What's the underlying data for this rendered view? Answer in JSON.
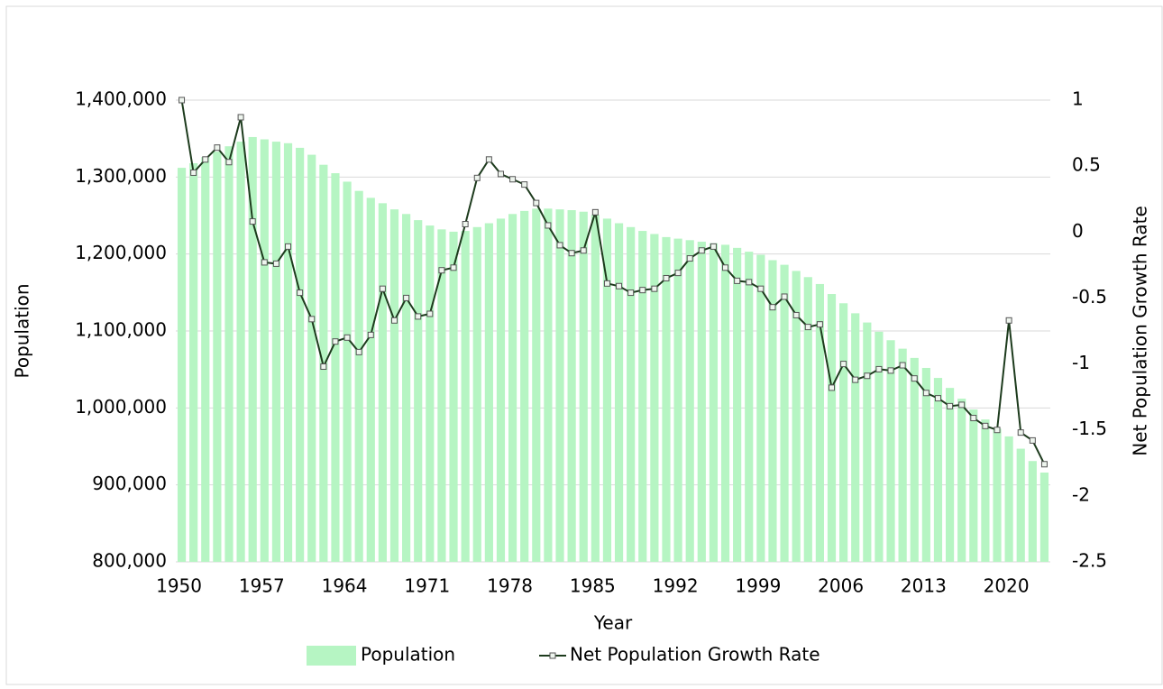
{
  "chart_data": {
    "type": "bar",
    "x_label": "Year",
    "y_label": "Population",
    "y2_label": "Net Population Growth Rate",
    "categories": [
      "1950",
      null,
      null,
      null,
      null,
      null,
      null,
      "1957",
      null,
      null,
      null,
      null,
      null,
      null,
      "1964",
      null,
      null,
      null,
      null,
      null,
      null,
      "1971",
      null,
      null,
      null,
      null,
      null,
      null,
      "1978",
      null,
      null,
      null,
      null,
      null,
      null,
      "1985",
      null,
      null,
      null,
      null,
      null,
      null,
      "1992",
      null,
      null,
      null,
      null,
      null,
      null,
      "1999",
      null,
      null,
      null,
      null,
      null,
      null,
      "2006",
      null,
      null,
      null,
      null,
      null,
      null,
      "2013",
      null,
      null,
      null,
      null,
      null,
      null,
      "2020",
      null,
      null,
      null
    ],
    "series": [
      {
        "name": "Population",
        "type": "bar",
        "color": "#b6f5c3",
        "values": [
          1312000,
          1318000,
          1326000,
          1333000,
          1340000,
          1346000,
          1352000,
          1349000,
          1346000,
          1344000,
          1338000,
          1329000,
          1316000,
          1305000,
          1294000,
          1282000,
          1273000,
          1266000,
          1258000,
          1252000,
          1244000,
          1237000,
          1232000,
          1229000,
          1230000,
          1235000,
          1240000,
          1246000,
          1252000,
          1256000,
          1259000,
          1259000,
          1258000,
          1257000,
          1255000,
          1251000,
          1246000,
          1240000,
          1235000,
          1230000,
          1226000,
          1222000,
          1220000,
          1218000,
          1216000,
          1214000,
          1212000,
          1208000,
          1203000,
          1199000,
          1192000,
          1186000,
          1178000,
          1170000,
          1161000,
          1148000,
          1136000,
          1123000,
          1111000,
          1099000,
          1088000,
          1077000,
          1065000,
          1052000,
          1039000,
          1026000,
          1012000,
          998000,
          985000,
          973000,
          963000,
          947000,
          931000,
          916000
        ]
      },
      {
        "name": "Net Population Growth Rate",
        "type": "line",
        "axis": "y2",
        "color": "#1d3b1d",
        "values": [
          1.0,
          0.45,
          0.55,
          0.64,
          0.53,
          0.87,
          0.08,
          -0.23,
          -0.24,
          -0.11,
          -0.46,
          -0.66,
          -1.02,
          -0.83,
          -0.8,
          -0.91,
          -0.78,
          -0.43,
          -0.67,
          -0.5,
          -0.64,
          -0.62,
          -0.29,
          -0.27,
          0.06,
          0.41,
          0.55,
          0.44,
          0.4,
          0.36,
          0.22,
          0.05,
          -0.1,
          -0.16,
          -0.14,
          0.15,
          -0.39,
          -0.41,
          -0.46,
          -0.44,
          -0.43,
          -0.35,
          -0.31,
          -0.2,
          -0.14,
          -0.11,
          -0.27,
          -0.37,
          -0.38,
          -0.43,
          -0.57,
          -0.49,
          -0.63,
          -0.72,
          -0.7,
          -1.18,
          -1.0,
          -1.12,
          -1.09,
          -1.04,
          -1.05,
          -1.01,
          -1.11,
          -1.22,
          -1.26,
          -1.32,
          -1.31,
          -1.41,
          -1.47,
          -1.5,
          -0.67,
          -1.52,
          -1.58,
          -1.76
        ]
      }
    ],
    "ylim": [
      800000,
      1400000
    ],
    "yticks": [
      {
        "value": 800000,
        "label": "800,000"
      },
      {
        "value": 900000,
        "label": "900,000"
      },
      {
        "value": 1000000,
        "label": "1,000,000"
      },
      {
        "value": 1100000,
        "label": "1,100,000"
      },
      {
        "value": 1200000,
        "label": "1,200,000"
      },
      {
        "value": 1300000,
        "label": "1,300,000"
      },
      {
        "value": 1400000,
        "label": "1,400,000"
      }
    ],
    "y2lim": [
      -2.5,
      1
    ],
    "y2ticks": [
      -2.5,
      -2,
      -1.5,
      -1,
      -0.5,
      0,
      0.5,
      1
    ],
    "grid": true,
    "legend": "bottom"
  }
}
